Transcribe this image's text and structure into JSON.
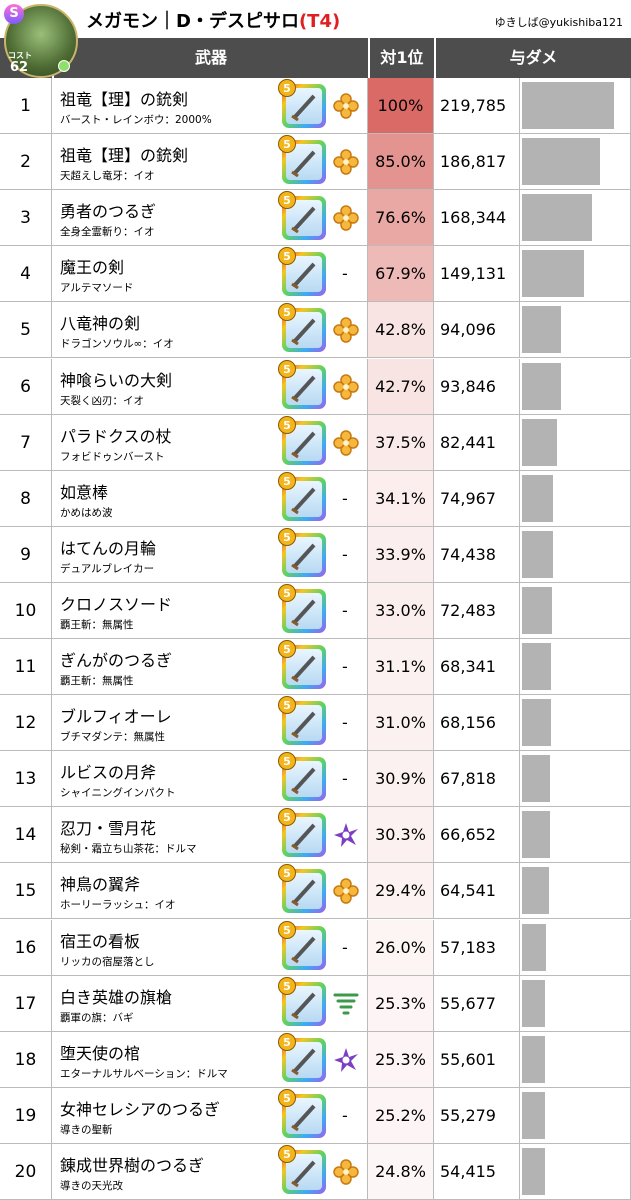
{
  "header": {
    "badge": "S",
    "title": "メガモン｜D・デスピサロ",
    "tier": "(T4)",
    "credit": "ゆきしば@yukishiba121",
    "cost_label": "コスト",
    "cost": "62"
  },
  "columns": [
    "武器",
    "対1位",
    "与ダメ"
  ],
  "weapon_rarity": "5",
  "rows": [
    {
      "rank": "1",
      "name": "祖竜【理】の銃剣",
      "skill": "バースト・レインボウ：2000%",
      "ratio": "100%",
      "damage": "219,785"
    },
    {
      "rank": "2",
      "name": "祖竜【理】の銃剣",
      "skill": "天超えし竜牙：イオ",
      "ratio": "85.0%",
      "damage": "186,817"
    },
    {
      "rank": "3",
      "name": "勇者のつるぎ",
      "skill": "全身全霊斬り：イオ",
      "ratio": "76.6%",
      "damage": "168,344"
    },
    {
      "rank": "4",
      "name": "魔王の剣",
      "skill": "アルテマソード",
      "element": "-",
      "ratio": "67.9%",
      "damage": "149,131"
    },
    {
      "rank": "5",
      "name": "八竜神の剣",
      "skill": "ドラゴンソウル∞：イオ",
      "ratio": "42.8%",
      "damage": "94,096"
    },
    {
      "rank": "6",
      "name": "神喰らいの大剣",
      "skill": "天裂く凶刃：イオ",
      "ratio": "42.7%",
      "damage": "93,846"
    },
    {
      "rank": "7",
      "name": "パラドクスの杖",
      "skill": "フォビドゥンバースト",
      "ratio": "37.5%",
      "damage": "82,441"
    },
    {
      "rank": "8",
      "name": "如意棒",
      "skill": "かめはめ波",
      "element": "-",
      "ratio": "34.1%",
      "damage": "74,967"
    },
    {
      "rank": "9",
      "name": "はてんの月輪",
      "skill": "デュアルブレイカー",
      "element": "-",
      "ratio": "33.9%",
      "damage": "74,438"
    },
    {
      "rank": "10",
      "name": "クロノスソード",
      "skill": "覇王斬：無属性",
      "element": "-",
      "ratio": "33.0%",
      "damage": "72,483"
    },
    {
      "rank": "11",
      "name": "ぎんがのつるぎ",
      "skill": "覇王斬：無属性",
      "element": "-",
      "ratio": "31.1%",
      "damage": "68,341"
    },
    {
      "rank": "12",
      "name": "ブルフィオーレ",
      "skill": "ブチマダンテ：無属性",
      "element": "-",
      "ratio": "31.0%",
      "damage": "68,156"
    },
    {
      "rank": "13",
      "name": "ルビスの月斧",
      "skill": "シャイニングインパクト",
      "element": "-",
      "ratio": "30.9%",
      "damage": "67,818"
    },
    {
      "rank": "14",
      "name": "忍刀・雪月花",
      "skill": "秘剣・霜立ち山茶花：ドルマ",
      "ratio": "30.3%",
      "damage": "66,652"
    },
    {
      "rank": "15",
      "name": "神鳥の翼斧",
      "skill": "ホーリーラッシュ：イオ",
      "ratio": "29.4%",
      "damage": "64,541"
    },
    {
      "rank": "16",
      "name": "宿王の看板",
      "skill": "リッカの宿屋落とし",
      "element": "-",
      "ratio": "26.0%",
      "damage": "57,183"
    },
    {
      "rank": "17",
      "name": "白き英雄の旗槍",
      "skill": "覇軍の旗：バギ",
      "ratio": "25.3%",
      "damage": "55,677"
    },
    {
      "rank": "18",
      "name": "堕天使の棺",
      "skill": "エターナルサルベーション：ドルマ",
      "ratio": "25.3%",
      "damage": "55,601"
    },
    {
      "rank": "19",
      "name": "女神セレシアのつるぎ",
      "skill": "導きの聖斬",
      "element": "-",
      "ratio": "25.2%",
      "damage": "55,279"
    },
    {
      "rank": "20",
      "name": "錬成世界樹のつるぎ",
      "skill": "導きの天光改",
      "ratio": "24.8%",
      "damage": "54,415"
    }
  ]
}
